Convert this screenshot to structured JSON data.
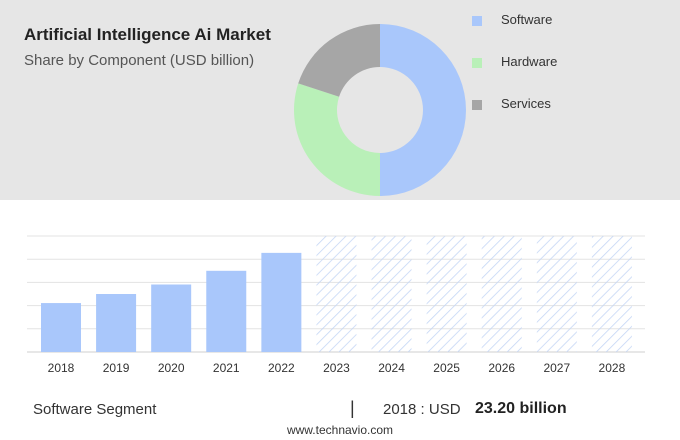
{
  "header": {
    "title": "Artificial Intelligence Ai Market",
    "subtitle": "Share by Component (USD billion)"
  },
  "chart_data": [
    {
      "type": "pie",
      "variant": "donut",
      "title": "Artificial Intelligence Ai Market",
      "subtitle": "Share by Component (USD billion)",
      "categories": [
        "Software",
        "Hardware",
        "Services"
      ],
      "values": [
        50,
        30,
        20
      ],
      "colors": [
        "#a9c7fb",
        "#b9f0b8",
        "#a6a6a6"
      ],
      "legend_position": "right"
    },
    {
      "type": "bar",
      "categories": [
        "2018",
        "2019",
        "2020",
        "2021",
        "2022",
        "2023",
        "2024",
        "2025",
        "2026",
        "2027",
        "2028"
      ],
      "values": [
        23.2,
        27.5,
        32.0,
        38.5,
        47.0,
        null,
        null,
        null,
        null,
        null,
        null
      ],
      "forecast_years": [
        "2023",
        "2024",
        "2025",
        "2026",
        "2027",
        "2028"
      ],
      "ylim": [
        0,
        55
      ],
      "grid": true,
      "colors": {
        "actual": "#a9c7fb",
        "forecast_hatch": "#c5d6f5"
      }
    }
  ],
  "footer": {
    "segment_label": "Software Segment",
    "divider": "|",
    "year_label": "2018 : USD",
    "value_label": "23.20 billion",
    "source": "www.technavio.com"
  }
}
